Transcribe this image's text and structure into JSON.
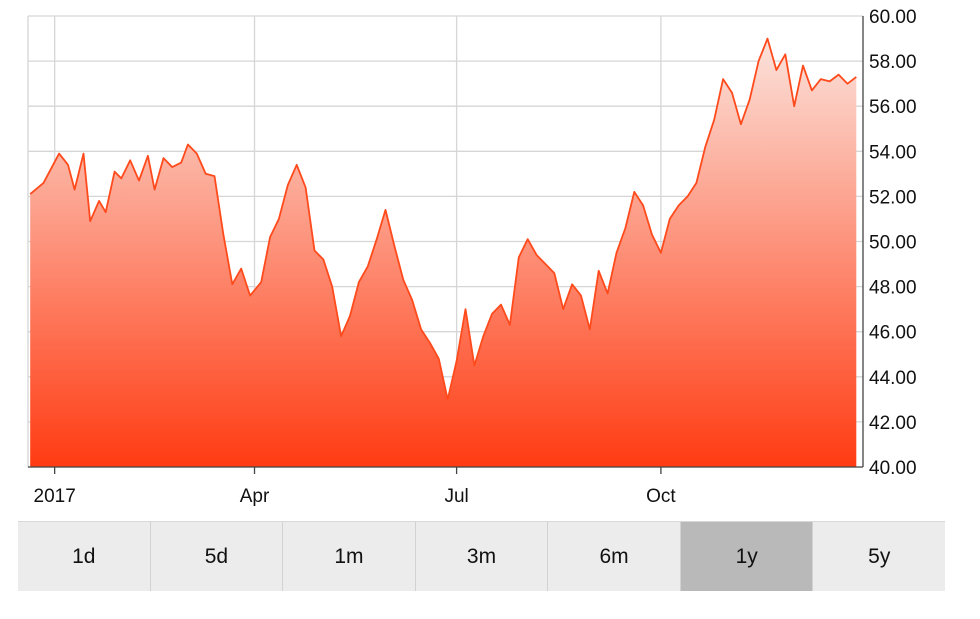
{
  "chart_data": {
    "type": "area",
    "title": "",
    "xlabel": "",
    "ylabel": "",
    "ylim": [
      40,
      60
    ],
    "yticks": [
      "60.00",
      "58.00",
      "56.00",
      "54.00",
      "52.00",
      "50.00",
      "48.00",
      "46.00",
      "44.00",
      "42.00",
      "40.00"
    ],
    "xticks": [
      {
        "label": "2017",
        "date": "2017-01-01"
      },
      {
        "label": "Apr",
        "date": "2017-04-01"
      },
      {
        "label": "Jul",
        "date": "2017-07-01"
      },
      {
        "label": "Oct",
        "date": "2017-10-01"
      }
    ],
    "xlim": [
      "2016-12-20",
      "2017-12-31"
    ],
    "grid": true,
    "line_color": "#ff4a1c",
    "fill_top_color": "#fbe3dc",
    "fill_bottom_color": "#ff3b12",
    "series": [
      {
        "x": [
          "2016-12-21",
          "2016-12-27",
          "2017-01-03",
          "2017-01-07",
          "2017-01-10",
          "2017-01-14",
          "2017-01-17",
          "2017-01-21",
          "2017-01-24",
          "2017-01-28",
          "2017-01-31",
          "2017-02-04",
          "2017-02-08",
          "2017-02-12",
          "2017-02-15",
          "2017-02-19",
          "2017-02-23",
          "2017-02-27",
          "2017-03-02",
          "2017-03-06",
          "2017-03-10",
          "2017-03-14",
          "2017-03-18",
          "2017-03-22",
          "2017-03-26",
          "2017-03-30",
          "2017-04-04",
          "2017-04-08",
          "2017-04-12",
          "2017-04-16",
          "2017-04-20",
          "2017-04-24",
          "2017-04-28",
          "2017-05-02",
          "2017-05-06",
          "2017-05-10",
          "2017-05-14",
          "2017-05-18",
          "2017-05-22",
          "2017-05-26",
          "2017-05-30",
          "2017-06-03",
          "2017-06-07",
          "2017-06-11",
          "2017-06-15",
          "2017-06-19",
          "2017-06-23",
          "2017-06-27",
          "2017-07-01",
          "2017-07-05",
          "2017-07-09",
          "2017-07-13",
          "2017-07-17",
          "2017-07-21",
          "2017-07-25",
          "2017-07-29",
          "2017-08-02",
          "2017-08-06",
          "2017-08-10",
          "2017-08-14",
          "2017-08-18",
          "2017-08-22",
          "2017-08-26",
          "2017-08-30",
          "2017-09-03",
          "2017-09-07",
          "2017-09-11",
          "2017-09-15",
          "2017-09-19",
          "2017-09-23",
          "2017-09-27",
          "2017-10-01",
          "2017-10-05",
          "2017-10-09",
          "2017-10-13",
          "2017-10-17",
          "2017-10-21",
          "2017-10-25",
          "2017-10-29",
          "2017-11-02",
          "2017-11-06",
          "2017-11-10",
          "2017-11-14",
          "2017-11-18",
          "2017-11-22",
          "2017-11-26",
          "2017-11-30",
          "2017-12-04",
          "2017-12-08",
          "2017-12-12",
          "2017-12-16",
          "2017-12-20",
          "2017-12-24",
          "2017-12-28"
        ],
        "values": [
          52.1,
          52.6,
          53.9,
          53.4,
          52.3,
          53.9,
          50.9,
          51.8,
          51.3,
          53.1,
          52.8,
          53.6,
          52.7,
          53.8,
          52.3,
          53.7,
          53.3,
          53.5,
          54.3,
          53.9,
          53.0,
          52.9,
          50.3,
          48.1,
          48.8,
          47.6,
          48.2,
          50.2,
          51.0,
          52.5,
          53.4,
          52.4,
          49.6,
          49.2,
          48.0,
          45.8,
          46.7,
          48.2,
          48.9,
          50.1,
          51.4,
          49.8,
          48.3,
          47.4,
          46.1,
          45.5,
          44.8,
          43.0,
          44.7,
          47.0,
          44.5,
          45.8,
          46.8,
          47.2,
          46.3,
          49.3,
          50.1,
          49.4,
          49.0,
          48.6,
          47.0,
          48.1,
          47.6,
          46.1,
          48.7,
          47.7,
          49.5,
          50.6,
          52.2,
          51.6,
          50.3,
          49.5,
          51.0,
          51.6,
          52.0,
          52.6,
          54.2,
          55.4,
          57.2,
          56.6,
          55.2,
          56.3,
          58.0,
          59.0,
          57.6,
          58.3,
          56.0,
          57.8,
          56.7,
          57.2,
          57.1,
          57.4,
          57.0,
          57.3
        ]
      }
    ]
  },
  "range_buttons": [
    {
      "label": "1d",
      "active": false
    },
    {
      "label": "5d",
      "active": false
    },
    {
      "label": "1m",
      "active": false
    },
    {
      "label": "3m",
      "active": false
    },
    {
      "label": "6m",
      "active": false
    },
    {
      "label": "1y",
      "active": true
    },
    {
      "label": "5y",
      "active": false
    }
  ]
}
